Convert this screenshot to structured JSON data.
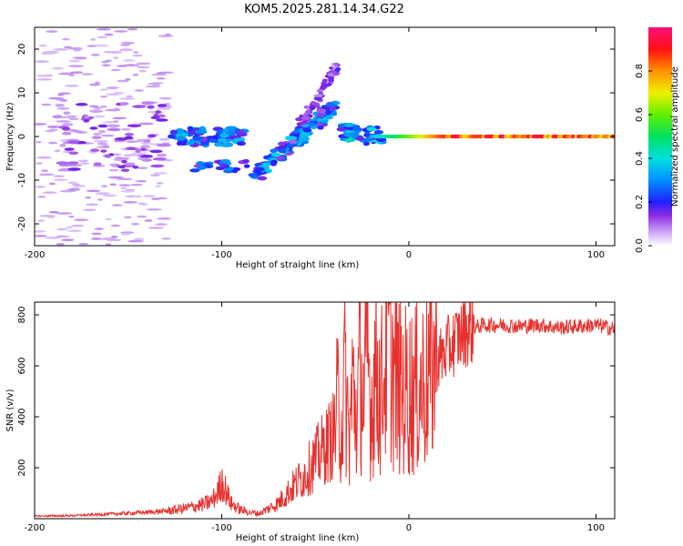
{
  "title": "KOM5.2025.281.14.34.G22",
  "chart_data": [
    {
      "type": "heatmap",
      "name": "spectrogram",
      "xlabel": "Height of straight line (km)",
      "ylabel": "Frequency (Hz)",
      "xlim": [
        -200,
        110
      ],
      "ylim": [
        -25,
        25
      ],
      "xticks": [
        -200,
        -100,
        0,
        100
      ],
      "yticks": [
        -20,
        -10,
        0,
        10,
        20
      ],
      "colorbar": {
        "label": "Normalized spectral amplitude",
        "range": [
          0,
          1
        ],
        "ticks": [
          0.0,
          0.2,
          0.4,
          0.6,
          0.8
        ],
        "colormap": "rainbow (lavender-purple-blue-cyan-green-yellow-orange-red-pink)"
      },
      "features": [
        {
          "name": "carrier",
          "x_range": [
            -20,
            110
          ],
          "freq": 0,
          "amplitude": 0.95
        },
        {
          "name": "rising-branch",
          "x_from": -80,
          "x_to": -42,
          "freq_from": -9,
          "freq_to": 7,
          "amplitude": 0.35
        },
        {
          "name": "upper-arc",
          "x_from": -60,
          "x_to": -40,
          "freq_from": 3,
          "freq_to": 16,
          "amplitude": 0.2
        },
        {
          "name": "left-band",
          "x_range": [
            -125,
            -90
          ],
          "freq": 0,
          "amplitude": 0.3
        },
        {
          "name": "noise-region",
          "x_range": [
            -200,
            -130
          ],
          "freq_range": [
            -25,
            25
          ],
          "amplitude": 0.05
        }
      ]
    },
    {
      "type": "line",
      "name": "snr",
      "xlabel": "Height of straight line (km)",
      "ylabel": "SNR (v/v)",
      "xlim": [
        -200,
        110
      ],
      "ylim": [
        0,
        850
      ],
      "xticks": [
        -200,
        -100,
        0,
        100
      ],
      "yticks": [
        200,
        400,
        600,
        800
      ],
      "color": "#e8312e",
      "series": [
        {
          "name": "SNR",
          "x": [
            -200,
            -180,
            -160,
            -140,
            -130,
            -120,
            -110,
            -105,
            -101,
            -100,
            -95,
            -90,
            -85,
            -80,
            -75,
            -70,
            -65,
            -60,
            -55,
            -50,
            -45,
            -40,
            -38,
            -36,
            -34,
            -32,
            -30,
            -28,
            -26,
            -24,
            -22,
            -20,
            -18,
            -15,
            -12,
            -10,
            -8,
            -5,
            0,
            5,
            10,
            15,
            20,
            25,
            30,
            40,
            50,
            60,
            70,
            80,
            90,
            100,
            110
          ],
          "values": [
            10,
            12,
            18,
            25,
            30,
            40,
            55,
            70,
            120,
            150,
            60,
            35,
            25,
            20,
            40,
            60,
            100,
            140,
            180,
            230,
            280,
            330,
            450,
            380,
            560,
            300,
            520,
            400,
            580,
            460,
            650,
            420,
            600,
            480,
            660,
            700,
            560,
            520,
            500,
            510,
            560,
            620,
            660,
            700,
            740,
            760,
            760,
            755,
            760,
            750,
            755,
            760,
            745
          ]
        }
      ]
    }
  ]
}
